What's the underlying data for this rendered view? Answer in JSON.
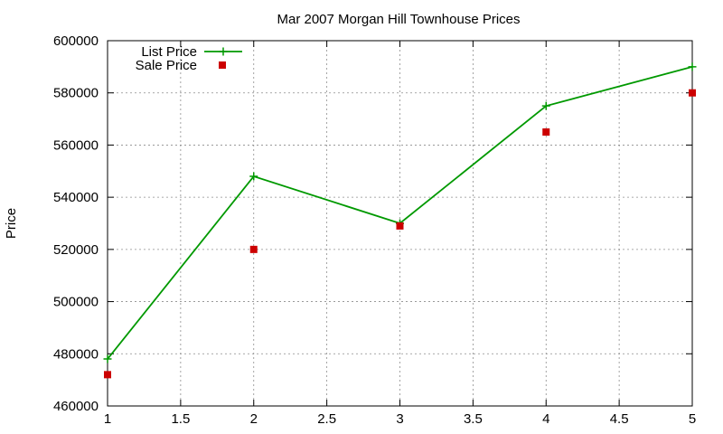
{
  "chart_data": {
    "type": "line",
    "title": "Mar 2007 Morgan Hill Townhouse Prices",
    "xlabel": "",
    "ylabel": "Price",
    "xlim": [
      1,
      5
    ],
    "ylim": [
      460000,
      600000
    ],
    "xticks": [
      "1",
      "1.5",
      "2",
      "2.5",
      "3",
      "3.5",
      "4",
      "4.5",
      "5"
    ],
    "yticks": [
      "460000",
      "480000",
      "500000",
      "520000",
      "540000",
      "560000",
      "580000",
      "600000"
    ],
    "grid": true,
    "legend_position": "top-left",
    "series": [
      {
        "name": "List Price",
        "style": "line-with-plus-markers",
        "color": "#009900",
        "x": [
          1,
          2,
          3,
          4,
          5
        ],
        "y": [
          478000,
          548000,
          530000,
          575000,
          590000
        ]
      },
      {
        "name": "Sale Price",
        "style": "square-markers",
        "color": "#cc0000",
        "x": [
          1,
          2,
          3,
          4,
          5
        ],
        "y": [
          472000,
          520000,
          529000,
          565000,
          580000
        ]
      }
    ]
  }
}
